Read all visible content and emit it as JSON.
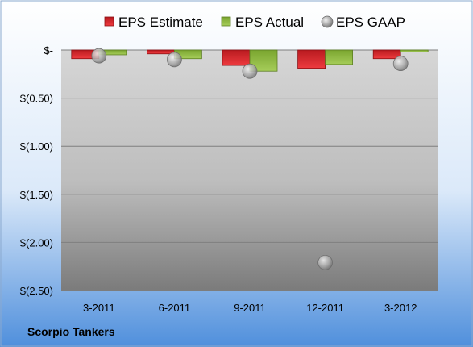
{
  "chart_data": {
    "type": "bar",
    "categories": [
      "3-2011",
      "6-2011",
      "9-2011",
      "12-2011",
      "3-2012"
    ],
    "series": [
      {
        "name": "EPS Estimate",
        "kind": "bar",
        "values": [
          -0.09,
          -0.04,
          -0.16,
          -0.19,
          -0.09
        ],
        "color": "#d9262b"
      },
      {
        "name": "EPS Actual",
        "kind": "bar",
        "values": [
          -0.05,
          -0.09,
          -0.22,
          -0.15,
          -0.02
        ],
        "color": "#8dbb3c"
      },
      {
        "name": "EPS GAAP",
        "kind": "point",
        "values": [
          -0.06,
          -0.1,
          -0.22,
          -2.21,
          -0.14
        ],
        "color": "#a6a6a6"
      }
    ],
    "y_ticks": [
      0,
      -0.5,
      -1.0,
      -1.5,
      -2.0,
      -2.5
    ],
    "y_tick_labels": [
      "$-",
      "$(0.50)",
      "$(1.00)",
      "$(1.50)",
      "$(2.00)",
      "$(2.50)"
    ],
    "ylim": [
      -2.5,
      0
    ],
    "grid": true,
    "legend_position": "top",
    "company": "Scorpio Tankers"
  }
}
